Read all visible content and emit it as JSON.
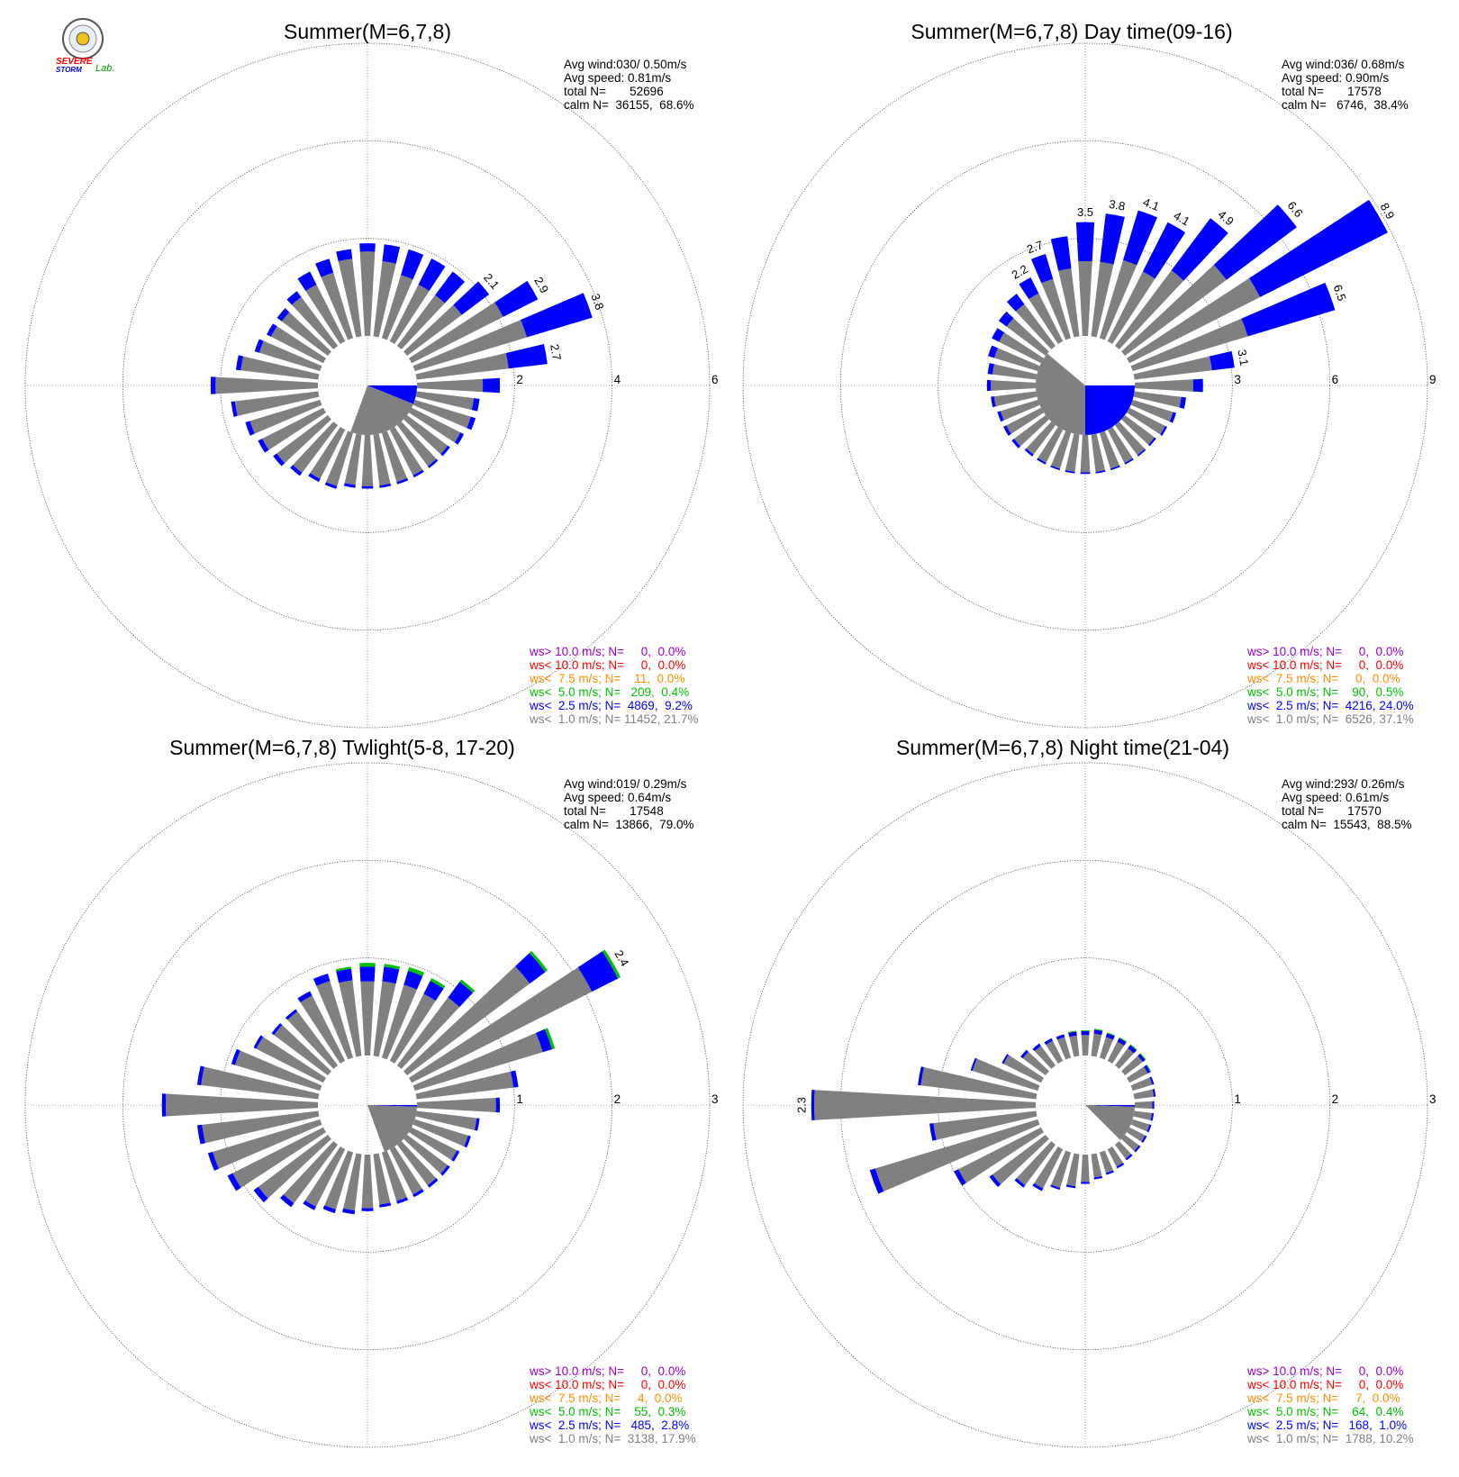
{
  "logo": {
    "line1": "SEVERE",
    "line2": "STORM",
    "line3": "Lab."
  },
  "colors": {
    "calm_bar": "#808080",
    "ws_lt_1": "#808080",
    "ws_lt_2_5": "#0000ff",
    "ws_lt_5": "#00c000",
    "ws_lt_7_5": "#ff8c00",
    "ws_lt_10": "#ff0000",
    "ws_gt_10": "#9900cc"
  },
  "chart_data": [
    {
      "type": "windrose",
      "title": "Summer(M=6,7,8)",
      "info": [
        "Avg wind:030/ 0.50m/s",
        "Avg speed: 0.81m/s",
        "total N=       52696",
        "calm N=  36155,  68.6%"
      ],
      "rings": [
        2,
        4,
        6
      ],
      "ring_labels": [
        "2",
        "4",
        "6"
      ],
      "calm_wedge": {
        "from_dir": 90,
        "to_dir": 200,
        "segments": [
          {
            "from": 90,
            "to": 112,
            "color": "#0000ff"
          },
          {
            "from": 112,
            "to": 200,
            "color": "#808080"
          }
        ]
      },
      "bars": [
        {
          "dir": 0,
          "value": 1.9,
          "blue": 0.17
        },
        {
          "dir": 10,
          "value": 1.9,
          "blue": 0.35
        },
        {
          "dir": 20,
          "value": 1.9,
          "blue": 0.55
        },
        {
          "dir": 30,
          "value": 1.9,
          "blue": 0.6
        },
        {
          "dir": 40,
          "value": 1.9,
          "blue": 0.6
        },
        {
          "dir": 50,
          "value": 2.1,
          "blue": 0.7,
          "label": "2.1"
        },
        {
          "dir": 60,
          "value": 2.9,
          "blue": 0.8,
          "label": "2.9"
        },
        {
          "dir": 70,
          "value": 3.8,
          "blue": 1.4,
          "label": "3.8"
        },
        {
          "dir": 80,
          "value": 2.7,
          "blue": 0.8,
          "label": "2.7"
        },
        {
          "dir": 90,
          "value": 1.7,
          "blue": 0.35
        },
        {
          "dir": 100,
          "value": 1.3,
          "blue": 0.12
        },
        {
          "dir": 110,
          "value": 1.3,
          "blue": 0.1
        },
        {
          "dir": 120,
          "value": 1.2,
          "blue": 0.08
        },
        {
          "dir": 130,
          "value": 1.1,
          "blue": 0.06
        },
        {
          "dir": 140,
          "value": 1.1,
          "blue": 0.05
        },
        {
          "dir": 150,
          "value": 1.1,
          "blue": 0.05
        },
        {
          "dir": 160,
          "value": 1.1,
          "blue": 0.05
        },
        {
          "dir": 170,
          "value": 1.1,
          "blue": 0.05
        },
        {
          "dir": 180,
          "value": 1.1,
          "blue": 0.05
        },
        {
          "dir": 190,
          "value": 1.1,
          "blue": 0.06
        },
        {
          "dir": 200,
          "value": 1.2,
          "blue": 0.06
        },
        {
          "dir": 210,
          "value": 1.2,
          "blue": 0.07
        },
        {
          "dir": 220,
          "value": 1.3,
          "blue": 0.08
        },
        {
          "dir": 230,
          "value": 1.4,
          "blue": 0.09
        },
        {
          "dir": 240,
          "value": 1.5,
          "blue": 0.1
        },
        {
          "dir": 250,
          "value": 1.6,
          "blue": 0.1
        },
        {
          "dir": 260,
          "value": 1.8,
          "blue": 0.08
        },
        {
          "dir": 270,
          "value": 2.2,
          "blue": 0.1
        },
        {
          "dir": 280,
          "value": 1.7,
          "blue": 0.1
        },
        {
          "dir": 290,
          "value": 1.4,
          "blue": 0.1
        },
        {
          "dir": 300,
          "value": 1.3,
          "blue": 0.1
        },
        {
          "dir": 310,
          "value": 1.3,
          "blue": 0.12
        },
        {
          "dir": 320,
          "value": 1.4,
          "blue": 0.15
        },
        {
          "dir": 330,
          "value": 1.6,
          "blue": 0.3
        },
        {
          "dir": 340,
          "value": 1.7,
          "blue": 0.3
        },
        {
          "dir": 350,
          "value": 1.8,
          "blue": 0.2
        }
      ],
      "legend": [
        {
          "text": "ws> 10.0 m/s; N=     0,  0.0%",
          "color": "#9900cc"
        },
        {
          "text": "ws< 10.0 m/s; N=     0,  0.0%",
          "color": "#ff0000"
        },
        {
          "text": "ws<  7.5 m/s; N=    11,  0.0%",
          "color": "#ff8c00"
        },
        {
          "text": "ws<  5.0 m/s; N=   209,  0.4%",
          "color": "#00c000"
        },
        {
          "text": "ws<  2.5 m/s; N=  4869,  9.2%",
          "color": "#0000ff"
        },
        {
          "text": "ws<  1.0 m/s; N= 11452, 21.7%",
          "color": "#808080"
        }
      ]
    },
    {
      "type": "windrose",
      "title": "Summer(M=6,7,8) Day time(09-16)",
      "info": [
        "Avg wind:036/ 0.68m/s",
        "Avg speed: 0.90m/s",
        "total N=       17578",
        "calm N=   6746,  38.4%"
      ],
      "rings": [
        3,
        6,
        9
      ],
      "ring_labels": [
        "3",
        "6",
        "9"
      ],
      "calm_wedge": {
        "from_dir": 0,
        "to_dir": 360,
        "segments": [
          {
            "from": 90,
            "to": 180,
            "color": "#0000ff"
          },
          {
            "from": 180,
            "to": 310,
            "color": "#808080"
          }
        ]
      },
      "bars": [
        {
          "dir": 0,
          "value": 3.5,
          "blue": 1.2,
          "label": "3.5"
        },
        {
          "dir": 10,
          "value": 3.8,
          "blue": 1.5,
          "label": "3.8"
        },
        {
          "dir": 20,
          "value": 4.1,
          "blue": 1.6,
          "label": "4.1"
        },
        {
          "dir": 30,
          "value": 4.1,
          "blue": 1.7,
          "label": "4.1"
        },
        {
          "dir": 40,
          "value": 4.9,
          "blue": 2.0,
          "label": "4.9"
        },
        {
          "dir": 50,
          "value": 6.6,
          "blue": 2.7,
          "label": "6.6"
        },
        {
          "dir": 60,
          "value": 8.9,
          "blue": 4.4,
          "label": "8.9"
        },
        {
          "dir": 70,
          "value": 6.5,
          "blue": 2.8,
          "label": "6.5"
        },
        {
          "dir": 80,
          "value": 3.1,
          "blue": 0.7,
          "label": "3.1"
        },
        {
          "dir": 90,
          "value": 2.1,
          "blue": 0.3
        },
        {
          "dir": 100,
          "value": 1.6,
          "blue": 0.15
        },
        {
          "dir": 110,
          "value": 1.4,
          "blue": 0.1
        },
        {
          "dir": 120,
          "value": 1.3,
          "blue": 0.07
        },
        {
          "dir": 130,
          "value": 1.2,
          "blue": 0.06
        },
        {
          "dir": 140,
          "value": 1.2,
          "blue": 0.05
        },
        {
          "dir": 150,
          "value": 1.2,
          "blue": 0.05
        },
        {
          "dir": 160,
          "value": 1.2,
          "blue": 0.05
        },
        {
          "dir": 170,
          "value": 1.2,
          "blue": 0.05
        },
        {
          "dir": 180,
          "value": 1.2,
          "blue": 0.05
        },
        {
          "dir": 190,
          "value": 1.2,
          "blue": 0.05
        },
        {
          "dir": 200,
          "value": 1.2,
          "blue": 0.05
        },
        {
          "dir": 210,
          "value": 1.2,
          "blue": 0.06
        },
        {
          "dir": 220,
          "value": 1.2,
          "blue": 0.07
        },
        {
          "dir": 230,
          "value": 1.3,
          "blue": 0.09
        },
        {
          "dir": 240,
          "value": 1.3,
          "blue": 0.1
        },
        {
          "dir": 250,
          "value": 1.3,
          "blue": 0.1
        },
        {
          "dir": 260,
          "value": 1.4,
          "blue": 0.1
        },
        {
          "dir": 270,
          "value": 1.5,
          "blue": 0.12
        },
        {
          "dir": 280,
          "value": 1.5,
          "blue": 0.15
        },
        {
          "dir": 290,
          "value": 1.6,
          "blue": 0.2
        },
        {
          "dir": 300,
          "value": 1.7,
          "blue": 0.25
        },
        {
          "dir": 310,
          "value": 1.8,
          "blue": 0.3
        },
        {
          "dir": 320,
          "value": 2.0,
          "blue": 0.4
        },
        {
          "dir": 330,
          "value": 2.2,
          "blue": 0.55,
          "label": "2.2"
        },
        {
          "dir": 340,
          "value": 2.7,
          "blue": 0.8,
          "label": "2.7"
        },
        {
          "dir": 350,
          "value": 3.1,
          "blue": 1.0
        }
      ],
      "legend": [
        {
          "text": "ws> 10.0 m/s; N=     0,  0.0%",
          "color": "#9900cc"
        },
        {
          "text": "ws< 10.0 m/s; N=     0,  0.0%",
          "color": "#ff0000"
        },
        {
          "text": "ws<  7.5 m/s; N=     0,  0.0%",
          "color": "#ff8c00"
        },
        {
          "text": "ws<  5.0 m/s; N=    90,  0.5%",
          "color": "#00c000"
        },
        {
          "text": "ws<  2.5 m/s; N=  4216, 24.0%",
          "color": "#0000ff"
        },
        {
          "text": "ws<  1.0 m/s; N=  6526, 37.1%",
          "color": "#808080"
        }
      ]
    },
    {
      "type": "windrose",
      "title": "Summer(M=6,7,8) Twlight(5-8, 17-20)",
      "info": [
        "Avg wind:019/ 0.29m/s",
        "Avg speed: 0.64m/s",
        "total N=       17548",
        "calm N=  13866,  79.0%"
      ],
      "rings": [
        1,
        2,
        3
      ],
      "ring_labels": [
        "1",
        "2",
        "3"
      ],
      "calm_wedge": {
        "from_dir": 90,
        "to_dir": 160,
        "segments": [
          {
            "from": 90,
            "to": 92,
            "color": "#0000ff"
          },
          {
            "from": 92,
            "to": 160,
            "color": "#808080"
          }
        ]
      },
      "bars": [
        {
          "dir": 0,
          "value": 0.95,
          "blue": 0.15,
          "green": 0.04
        },
        {
          "dir": 10,
          "value": 0.95,
          "blue": 0.15,
          "green": 0.03
        },
        {
          "dir": 20,
          "value": 0.97,
          "blue": 0.15,
          "green": 0.04
        },
        {
          "dir": 30,
          "value": 0.95,
          "blue": 0.15,
          "green": 0.03
        },
        {
          "dir": 40,
          "value": 1.1,
          "blue": 0.2,
          "green": 0.03
        },
        {
          "dir": 50,
          "value": 1.8,
          "blue": 0.2,
          "green": 0.03
        },
        {
          "dir": 60,
          "value": 2.4,
          "blue": 0.3,
          "green": 0.03,
          "label": "2.4"
        },
        {
          "dir": 70,
          "value": 1.5,
          "blue": 0.1,
          "green": 0.03
        },
        {
          "dir": 80,
          "value": 1.05,
          "blue": 0.05
        },
        {
          "dir": 90,
          "value": 0.85,
          "blue": 0.04
        },
        {
          "dir": 100,
          "value": 0.65,
          "blue": 0.03
        },
        {
          "dir": 110,
          "value": 0.6,
          "blue": 0.03
        },
        {
          "dir": 120,
          "value": 0.55,
          "blue": 0.03
        },
        {
          "dir": 130,
          "value": 0.55,
          "blue": 0.03
        },
        {
          "dir": 140,
          "value": 0.55,
          "blue": 0.03
        },
        {
          "dir": 150,
          "value": 0.55,
          "blue": 0.03
        },
        {
          "dir": 160,
          "value": 0.55,
          "blue": 0.03
        },
        {
          "dir": 170,
          "value": 0.55,
          "blue": 0.03
        },
        {
          "dir": 180,
          "value": 0.58,
          "blue": 0.03
        },
        {
          "dir": 190,
          "value": 0.62,
          "blue": 0.04
        },
        {
          "dir": 200,
          "value": 0.65,
          "blue": 0.04
        },
        {
          "dir": 210,
          "value": 0.7,
          "blue": 0.04
        },
        {
          "dir": 220,
          "value": 0.8,
          "blue": 0.05
        },
        {
          "dir": 230,
          "value": 0.95,
          "blue": 0.06
        },
        {
          "dir": 240,
          "value": 1.1,
          "blue": 0.06
        },
        {
          "dir": 250,
          "value": 1.2,
          "blue": 0.05
        },
        {
          "dir": 260,
          "value": 1.25,
          "blue": 0.05
        },
        {
          "dir": 270,
          "value": 1.6,
          "blue": 0.04
        },
        {
          "dir": 280,
          "value": 1.25,
          "blue": 0.04
        },
        {
          "dir": 290,
          "value": 0.95,
          "blue": 0.04
        },
        {
          "dir": 300,
          "value": 0.8,
          "blue": 0.03
        },
        {
          "dir": 310,
          "value": 0.72,
          "blue": 0.03
        },
        {
          "dir": 320,
          "value": 0.72,
          "blue": 0.03
        },
        {
          "dir": 330,
          "value": 0.8,
          "blue": 0.05
        },
        {
          "dir": 340,
          "value": 0.9,
          "blue": 0.08
        },
        {
          "dir": 350,
          "value": 0.92,
          "blue": 0.12,
          "green": 0.02
        }
      ],
      "legend": [
        {
          "text": "ws> 10.0 m/s; N=     0,  0.0%",
          "color": "#9900cc"
        },
        {
          "text": "ws< 10.0 m/s; N=     0,  0.0%",
          "color": "#ff0000"
        },
        {
          "text": "ws<  7.5 m/s; N=     4,  0.0%",
          "color": "#ff8c00"
        },
        {
          "text": "ws<  5.0 m/s; N=    55,  0.3%",
          "color": "#00c000"
        },
        {
          "text": "ws<  2.5 m/s; N=   485,  2.8%",
          "color": "#0000ff"
        },
        {
          "text": "ws<  1.0 m/s; N=  3138, 17.9%",
          "color": "#808080"
        }
      ]
    },
    {
      "type": "windrose",
      "title": "Summer(M=6,7,8) Night time(21-04)",
      "info": [
        "Avg wind:293/ 0.26m/s",
        "Avg speed: 0.61m/s",
        "total N=       17570",
        "calm N=  15543,  88.5%"
      ],
      "rings": [
        1,
        2,
        3
      ],
      "ring_labels": [
        "1",
        "2",
        "3"
      ],
      "calm_wedge": {
        "from_dir": 90,
        "to_dir": 135,
        "segments": [
          {
            "from": 90,
            "to": 92,
            "color": "#0000ff"
          },
          {
            "from": 92,
            "to": 135,
            "color": "#808080"
          }
        ]
      },
      "bars": [
        {
          "dir": 0,
          "value": 0.26,
          "blue": 0.04,
          "green": 0.01
        },
        {
          "dir": 10,
          "value": 0.28,
          "blue": 0.04,
          "green": 0.01
        },
        {
          "dir": 20,
          "value": 0.27,
          "blue": 0.04,
          "green": 0.01
        },
        {
          "dir": 30,
          "value": 0.27,
          "blue": 0.04,
          "green": 0.01
        },
        {
          "dir": 40,
          "value": 0.27,
          "blue": 0.04,
          "green": 0.01
        },
        {
          "dir": 50,
          "value": 0.27,
          "blue": 0.03,
          "green": 0.01
        },
        {
          "dir": 60,
          "value": 0.25,
          "blue": 0.03,
          "green": 0.01
        },
        {
          "dir": 70,
          "value": 0.23,
          "blue": 0.02
        },
        {
          "dir": 80,
          "value": 0.22,
          "blue": 0.02
        },
        {
          "dir": 90,
          "value": 0.2,
          "blue": 0.02
        },
        {
          "dir": 100,
          "value": 0.2,
          "blue": 0.02
        },
        {
          "dir": 110,
          "value": 0.2,
          "blue": 0.02
        },
        {
          "dir": 120,
          "value": 0.2,
          "blue": 0.02
        },
        {
          "dir": 130,
          "value": 0.2,
          "blue": 0.02
        },
        {
          "dir": 140,
          "value": 0.2,
          "blue": 0.02
        },
        {
          "dir": 150,
          "value": 0.22,
          "blue": 0.02
        },
        {
          "dir": 160,
          "value": 0.24,
          "blue": 0.02
        },
        {
          "dir": 170,
          "value": 0.26,
          "blue": 0.02
        },
        {
          "dir": 180,
          "value": 0.3,
          "blue": 0.02
        },
        {
          "dir": 190,
          "value": 0.35,
          "blue": 0.02
        },
        {
          "dir": 200,
          "value": 0.4,
          "blue": 0.02
        },
        {
          "dir": 210,
          "value": 0.48,
          "blue": 0.03
        },
        {
          "dir": 220,
          "value": 0.55,
          "blue": 0.03
        },
        {
          "dir": 230,
          "value": 0.72,
          "blue": 0.04
        },
        {
          "dir": 240,
          "value": 1.0,
          "blue": 0.05
        },
        {
          "dir": 250,
          "value": 1.8,
          "blue": 0.06
        },
        {
          "dir": 260,
          "value": 1.1,
          "blue": 0.04
        },
        {
          "dir": 270,
          "value": 2.3,
          "blue": 0.03,
          "label": "2.3"
        },
        {
          "dir": 280,
          "value": 1.22,
          "blue": 0.03
        },
        {
          "dir": 290,
          "value": 0.72,
          "blue": 0.02
        },
        {
          "dir": 300,
          "value": 0.45,
          "blue": 0.02
        },
        {
          "dir": 310,
          "value": 0.32,
          "blue": 0.03
        },
        {
          "dir": 320,
          "value": 0.28,
          "blue": 0.03
        },
        {
          "dir": 330,
          "value": 0.26,
          "blue": 0.03
        },
        {
          "dir": 340,
          "value": 0.25,
          "blue": 0.03
        },
        {
          "dir": 350,
          "value": 0.26,
          "blue": 0.04,
          "green": 0.01
        }
      ],
      "legend": [
        {
          "text": "ws> 10.0 m/s; N=     0,  0.0%",
          "color": "#9900cc"
        },
        {
          "text": "ws< 10.0 m/s; N=     0,  0.0%",
          "color": "#ff0000"
        },
        {
          "text": "ws<  7.5 m/s; N=     7,  0.0%",
          "color": "#ff8c00"
        },
        {
          "text": "ws<  5.0 m/s; N=    64,  0.4%",
          "color": "#00c000"
        },
        {
          "text": "ws<  2.5 m/s; N=   168,  1.0%",
          "color": "#0000ff"
        },
        {
          "text": "ws<  1.0 m/s; N=  1788, 10.2%",
          "color": "#808080"
        }
      ]
    }
  ]
}
